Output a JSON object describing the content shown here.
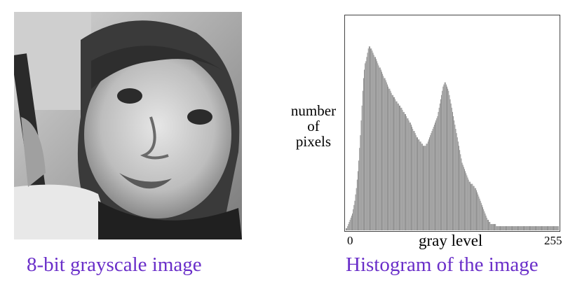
{
  "captions": {
    "left": "8-bit grayscale image",
    "right": "Histogram of the image"
  },
  "chart_data": {
    "type": "bar",
    "ylabel_lines": [
      "number",
      "of",
      "pixels"
    ],
    "xlabel": "gray level",
    "x_ticks": [
      "0",
      "255"
    ],
    "xlim": [
      0,
      255
    ],
    "ylim": [
      0,
      100
    ],
    "grid": false,
    "bar_color": "#888888",
    "values": [
      1,
      1,
      2,
      3,
      4,
      5,
      6,
      7,
      8,
      10,
      12,
      14,
      17,
      20,
      24,
      28,
      33,
      39,
      45,
      52,
      59,
      66,
      72,
      76,
      79,
      80,
      82,
      84,
      86,
      87,
      87,
      86,
      86,
      85,
      84,
      83,
      82,
      82,
      81,
      80,
      79,
      78,
      77,
      77,
      76,
      75,
      74,
      73,
      72,
      72,
      71,
      70,
      69,
      68,
      67,
      67,
      66,
      65,
      64,
      64,
      63,
      63,
      62,
      61,
      61,
      60,
      60,
      59,
      59,
      58,
      58,
      57,
      56,
      56,
      55,
      55,
      54,
      53,
      53,
      52,
      51,
      51,
      50,
      49,
      48,
      47,
      47,
      46,
      45,
      44,
      44,
      43,
      43,
      42,
      42,
      41,
      41,
      40,
      40,
      40,
      40,
      41,
      41,
      42,
      43,
      44,
      45,
      46,
      47,
      48,
      49,
      50,
      51,
      52,
      53,
      54,
      56,
      58,
      60,
      62,
      64,
      66,
      68,
      69,
      70,
      70,
      69,
      68,
      67,
      66,
      64,
      62,
      60,
      58,
      56,
      54,
      52,
      50,
      48,
      46,
      44,
      42,
      40,
      38,
      36,
      34,
      32,
      31,
      30,
      29,
      28,
      27,
      26,
      25,
      24,
      23,
      23,
      22,
      22,
      22,
      21,
      21,
      20,
      20,
      19,
      18,
      17,
      16,
      15,
      14,
      13,
      12,
      11,
      10,
      9,
      8,
      7,
      6,
      5,
      5,
      4,
      4,
      3,
      3,
      3,
      3,
      3,
      3,
      3,
      2,
      2,
      2,
      2,
      2,
      2,
      2,
      2,
      2,
      2,
      2,
      2,
      2,
      2,
      2,
      2,
      2,
      2,
      2,
      2,
      2,
      2,
      2,
      2,
      2,
      2,
      2,
      2,
      2,
      2,
      2,
      2,
      2,
      2,
      2,
      2,
      2,
      2,
      2,
      2,
      2,
      2,
      2,
      2,
      2,
      2,
      2,
      2,
      2,
      2,
      2,
      2,
      2,
      2,
      2,
      2,
      2,
      2,
      2,
      2,
      2,
      2,
      2,
      2,
      2,
      2,
      2,
      2,
      2,
      2,
      2,
      2,
      2,
      2,
      2,
      2,
      2,
      2,
      2
    ]
  }
}
